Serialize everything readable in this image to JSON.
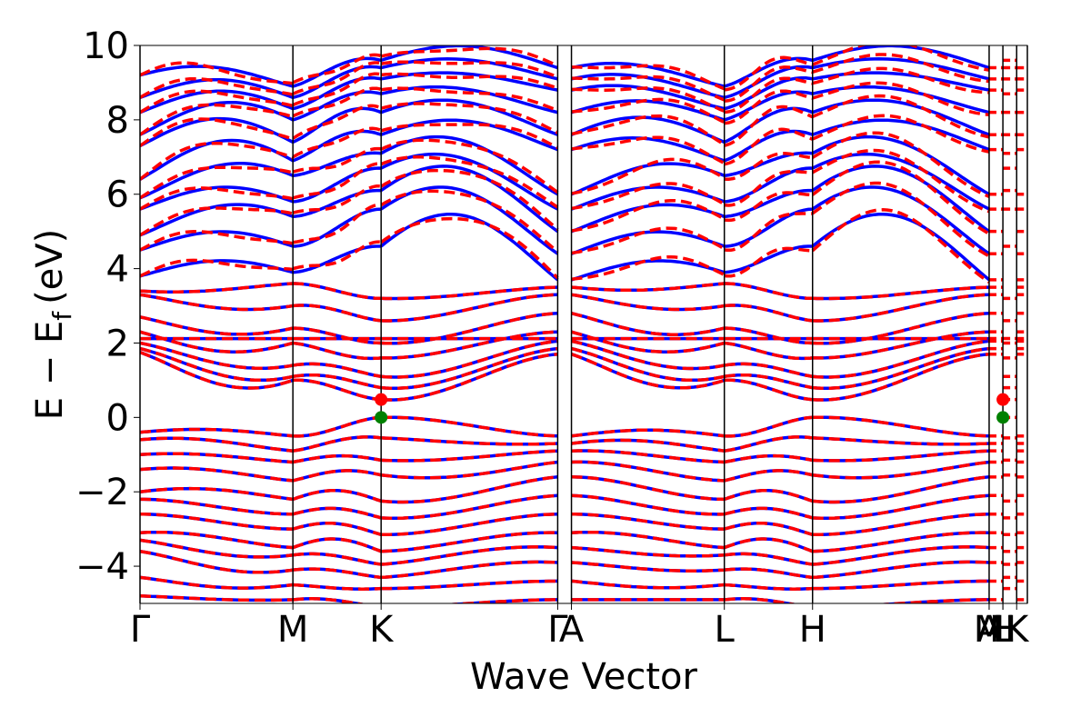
{
  "chart_data": {
    "type": "line",
    "title": "",
    "xlabel": "Wave Vector",
    "ylabel_main": "E − E",
    "ylabel_sub": "f",
    "ylabel_unit": "(eV)",
    "ylim": [
      -5,
      10
    ],
    "yticks": [
      -4,
      -2,
      0,
      2,
      4,
      6,
      8,
      10
    ],
    "ytick_labels": [
      "−4",
      "−2",
      "0",
      "2",
      "4",
      "6",
      "8",
      "10"
    ],
    "grid": false,
    "legend": "none",
    "xlim": [
      0,
      5.804
    ],
    "kpoints": [
      {
        "label": "Γ",
        "x": 0.0
      },
      {
        "label": "M",
        "x": 1.0
      },
      {
        "label": "K",
        "x": 1.577
      },
      {
        "label": "Γ",
        "x": 2.732
      },
      {
        "label": "A",
        "x": 2.822
      },
      {
        "label": "L",
        "x": 3.822
      },
      {
        "label": "H",
        "x": 4.399
      },
      {
        "label": "A",
        "x": 5.554
      },
      {
        "label": "M",
        "x": 5.554
      },
      {
        "label": "L",
        "x": 5.644
      },
      {
        "label": "H",
        "x": 5.644
      },
      {
        "label": "K",
        "x": 5.734
      }
    ],
    "kpoint_lines": [
      0.0,
      1.0,
      1.577,
      2.732,
      2.822,
      3.822,
      4.399,
      5.554,
      5.644,
      5.734,
      5.804
    ],
    "series": [
      {
        "color": "#0000ff",
        "style": "solid"
      },
      {
        "color": "#ff0000",
        "style": "dashed"
      }
    ],
    "vbm_point": {
      "x": 1.577,
      "y": 0.0,
      "color": "#008000"
    },
    "cbm_point": {
      "x": 1.577,
      "y": 0.48,
      "color": "#ff0000"
    },
    "vbm_point_2": {
      "x": 5.644,
      "y": 0.0,
      "color": "#008000"
    },
    "cbm_point_2": {
      "x": 5.644,
      "y": 0.48,
      "color": "#ff0000"
    },
    "valence_bands": [
      {
        "G": -0.4,
        "M": -0.5,
        "K": 0.0,
        "G2": -0.5,
        "mid1": -0.2,
        "mid2": -0.3
      },
      {
        "G": -0.6,
        "M": -0.9,
        "K": -0.55,
        "G2": -0.7,
        "mid1": -0.7,
        "mid2": -0.6
      },
      {
        "G": -1.0,
        "M": -1.2,
        "K": -1.15,
        "G2": -0.9,
        "mid1": -1.1,
        "mid2": -1.0
      },
      {
        "G": -1.4,
        "M": -1.7,
        "K": -1.55,
        "G2": -1.2,
        "mid1": -1.6,
        "mid2": -1.4
      },
      {
        "G": -2.0,
        "M": -2.2,
        "K": -2.25,
        "G2": -1.6,
        "mid1": -2.1,
        "mid2": -1.9
      },
      {
        "G": -2.2,
        "M": -2.6,
        "K": -2.7,
        "G2": -2.1,
        "mid1": -2.5,
        "mid2": -2.4
      },
      {
        "G": -2.6,
        "M": -3.0,
        "K": -3.15,
        "G2": -2.6,
        "mid1": -2.9,
        "mid2": -2.8
      },
      {
        "G": -3.1,
        "M": -3.5,
        "K": -3.6,
        "G2": -3.1,
        "mid1": -3.3,
        "mid2": -3.2
      },
      {
        "G": -3.3,
        "M": -3.7,
        "K": -3.95,
        "G2": -3.5,
        "mid1": -3.6,
        "mid2": -3.7
      },
      {
        "G": -3.6,
        "M": -4.1,
        "K": -4.3,
        "G2": -3.9,
        "mid1": -4.0,
        "mid2": -4.1
      },
      {
        "G": -4.3,
        "M": -4.5,
        "K": -4.6,
        "G2": -4.4,
        "mid1": -4.5,
        "mid2": -4.6
      },
      {
        "G": -4.8,
        "M": -4.9,
        "K": -5.1,
        "G2": -4.9,
        "mid1": -5.0,
        "mid2": -4.9
      }
    ],
    "conduction_bands": [
      {
        "G": 1.75,
        "M": 1.0,
        "K": 0.48,
        "G2": 1.7,
        "mid1": 0.95,
        "mid2": 0.8
      },
      {
        "G": 1.85,
        "M": 1.1,
        "K": 0.8,
        "G2": 1.85,
        "mid1": 1.15,
        "mid2": 1.1
      },
      {
        "G": 2.0,
        "M": 1.4,
        "K": 1.1,
        "G2": 2.05,
        "mid1": 1.4,
        "mid2": 1.4
      },
      {
        "G": 2.12,
        "M": 2.12,
        "K": 2.12,
        "G2": 2.12,
        "mid1": 2.12,
        "mid2": 2.12
      },
      {
        "G": 2.3,
        "M": 2.0,
        "K": 1.6,
        "G2": 2.3,
        "mid1": 1.9,
        "mid2": 1.7
      },
      {
        "G": 2.7,
        "M": 2.4,
        "K": 2.0,
        "G2": 2.8,
        "mid1": 2.3,
        "mid2": 2.2
      },
      {
        "G": 3.3,
        "M": 3.0,
        "K": 2.6,
        "G2": 3.3,
        "mid1": 2.9,
        "mid2": 2.9
      },
      {
        "G": 3.4,
        "M": 3.6,
        "K": 3.2,
        "G2": 3.5,
        "mid1": 3.3,
        "mid2": 3.4
      },
      {
        "G": 3.8,
        "M": 3.9,
        "K": 4.6,
        "G2": 3.7,
        "mid1": 5.7,
        "mid2": 4.3
      },
      {
        "G": 4.5,
        "M": 4.6,
        "K": 5.6,
        "G2": 4.4,
        "mid1": 6.3,
        "mid2": 5.1
      },
      {
        "G": 4.9,
        "M": 5.4,
        "K": 6.1,
        "G2": 5.0,
        "mid1": 6.9,
        "mid2": 5.8
      },
      {
        "G": 5.6,
        "M": 5.8,
        "K": 6.7,
        "G2": 5.6,
        "mid1": 7.1,
        "mid2": 6.3
      },
      {
        "G": 5.9,
        "M": 6.5,
        "K": 7.1,
        "G2": 6.0,
        "mid1": 7.6,
        "mid2": 6.9
      },
      {
        "G": 6.4,
        "M": 6.9,
        "K": 7.6,
        "G2": 7.2,
        "mid1": 8.1,
        "mid2": 7.6
      },
      {
        "G": 7.3,
        "M": 7.4,
        "K": 8.2,
        "G2": 7.6,
        "mid1": 8.6,
        "mid2": 8.2
      },
      {
        "G": 7.6,
        "M": 8.0,
        "K": 8.7,
        "G2": 8.2,
        "mid1": 8.9,
        "mid2": 8.6
      },
      {
        "G": 8.2,
        "M": 8.3,
        "K": 9.1,
        "G2": 8.8,
        "mid1": 9.3,
        "mid2": 8.9
      },
      {
        "G": 8.6,
        "M": 8.6,
        "K": 9.4,
        "G2": 9.1,
        "mid1": 9.7,
        "mid2": 9.2
      },
      {
        "G": 9.2,
        "M": 8.9,
        "K": 9.6,
        "G2": 9.4,
        "mid1": 10.1,
        "mid2": 9.5
      }
    ]
  }
}
